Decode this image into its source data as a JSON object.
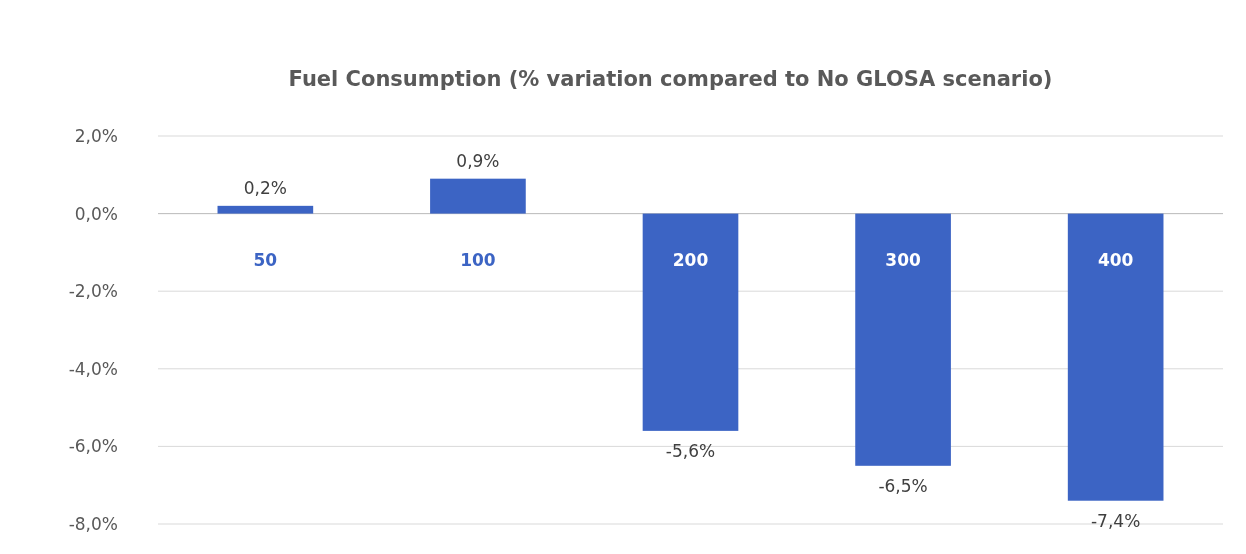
{
  "chart_data": {
    "type": "bar",
    "title": "Fuel Consumption (% variation compared to No GLOSA scenario)",
    "categories": [
      "50",
      "100",
      "200",
      "300",
      "400"
    ],
    "values": [
      0.2,
      0.9,
      -5.6,
      -6.5,
      -7.4
    ],
    "value_labels": [
      "0,2%",
      "0,9%",
      "-5,6%",
      "-6,5%",
      "-7,4%"
    ],
    "color": "#3c64c4",
    "ylim": [
      -8,
      2
    ],
    "yticks": [
      {
        "value": 2,
        "label": "2,0%"
      },
      {
        "value": 0,
        "label": "0,0%"
      },
      {
        "value": -2,
        "label": "-2,0%"
      },
      {
        "value": -4,
        "label": "-4,0%"
      },
      {
        "value": -6,
        "label": "-6,0%"
      },
      {
        "value": -8,
        "label": "-8,0%"
      }
    ],
    "grid": "y"
  }
}
